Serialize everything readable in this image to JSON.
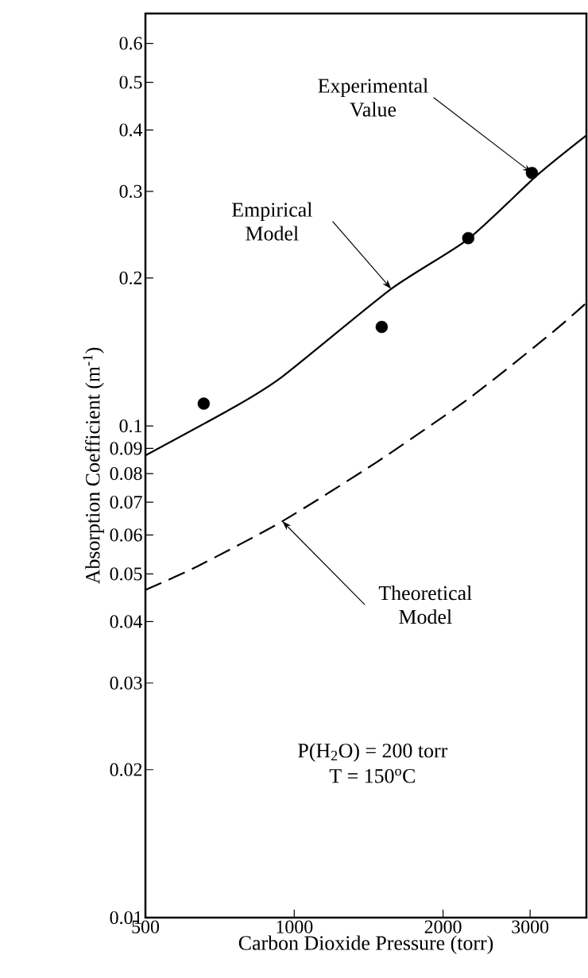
{
  "chart_data": {
    "type": "line",
    "xlabel": "Carbon Dioxide Pressure (torr)",
    "ylabel": "Absorption Coefficient (m$^{-1}$)",
    "log": "xy",
    "xlim": [
      500,
      3900
    ],
    "ylim": [
      0.01,
      0.69
    ],
    "xticks": [
      500,
      1000,
      2000,
      3000
    ],
    "yticks": [
      0.01,
      0.02,
      0.03,
      0.04,
      0.05,
      0.06,
      0.07,
      0.08,
      0.09,
      0.1,
      0.2,
      0.3,
      0.4,
      0.5,
      0.6
    ],
    "series": [
      {
        "type": "scatter",
        "marker": "circle",
        "color": "#000000",
        "x": [
          656,
          1503,
          2249,
          3026
        ],
        "values": [
          0.111,
          0.159,
          0.241,
          0.327
        ]
      },
      {
        "line_style": "solid",
        "color": "#000000",
        "x": [
          500,
          753,
          946,
          1571,
          2249,
          3105,
          3900
        ],
        "values": [
          0.0871,
          0.109,
          0.126,
          0.19,
          0.24,
          0.324,
          0.39
        ]
      },
      {
        "line_style": "dashed",
        "color": "#000000",
        "x": [
          500,
          634,
          946,
          1465,
          2263,
          3328,
          3900
        ],
        "values": [
          0.0464,
          0.0517,
          0.064,
          0.0843,
          0.114,
          0.155,
          0.178
        ]
      }
    ],
    "annotations": [
      {
        "text": "Experimental Value",
        "x": 3026,
        "y": 0.327
      },
      {
        "text": "Empirical Model",
        "x": 1571,
        "y": 0.19
      },
      {
        "text": "Theoretical Model",
        "x": 946,
        "y": 0.064
      },
      "P(H$_{2}$O) = 200 torr",
      "T = 150$^{o}$C"
    ]
  }
}
